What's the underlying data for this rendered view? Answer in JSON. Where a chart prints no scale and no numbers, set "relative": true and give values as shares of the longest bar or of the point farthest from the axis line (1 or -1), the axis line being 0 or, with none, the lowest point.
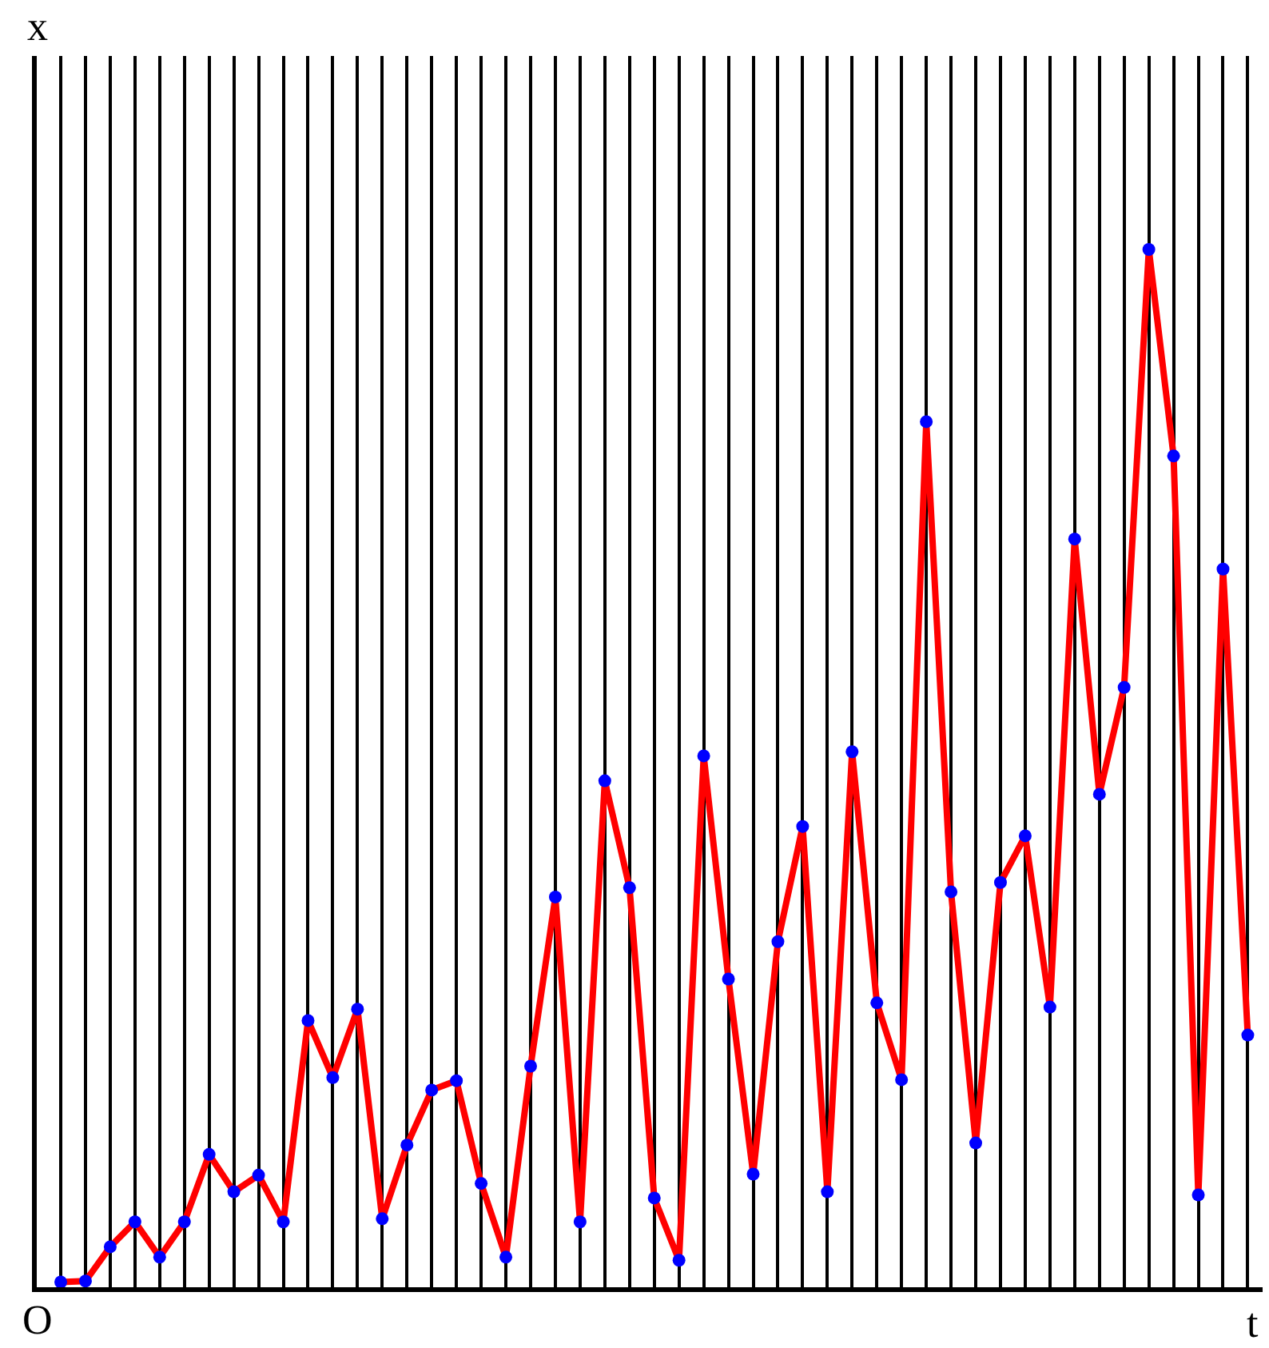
{
  "chart_data": {
    "type": "line",
    "relative": true,
    "xlabel": "t",
    "ylabel": "x",
    "annotations": [
      "O"
    ],
    "categories": [
      null,
      null,
      null,
      null,
      null,
      null,
      null,
      null,
      null,
      null,
      null,
      null,
      null,
      null,
      null,
      null,
      null,
      null,
      null,
      null,
      null,
      null,
      null,
      null,
      null,
      null,
      null,
      null,
      null,
      null,
      null,
      null,
      null,
      null,
      null,
      null,
      null,
      null,
      null,
      null,
      null,
      null,
      null,
      null,
      null,
      null,
      null,
      null,
      null
    ],
    "series": [
      {
        "color": "#ff0000",
        "values": [
          0.005,
          0.006,
          0.039,
          0.063,
          0.029,
          0.063,
          0.128,
          0.092,
          0.108,
          0.063,
          0.257,
          0.202,
          0.268,
          0.066,
          0.137,
          0.19,
          0.199,
          0.1,
          0.029,
          0.213,
          0.376,
          0.063,
          0.488,
          0.385,
          0.086,
          0.026,
          0.512,
          0.297,
          0.109,
          0.333,
          0.444,
          0.092,
          0.516,
          0.274,
          0.2,
          0.834,
          0.381,
          0.139,
          0.39,
          0.435,
          0.27,
          0.721,
          0.475,
          0.578,
          1,
          0.801,
          0.089,
          0.692,
          0.243
        ]
      }
    ],
    "marker": "circle",
    "grid": "x"
  }
}
